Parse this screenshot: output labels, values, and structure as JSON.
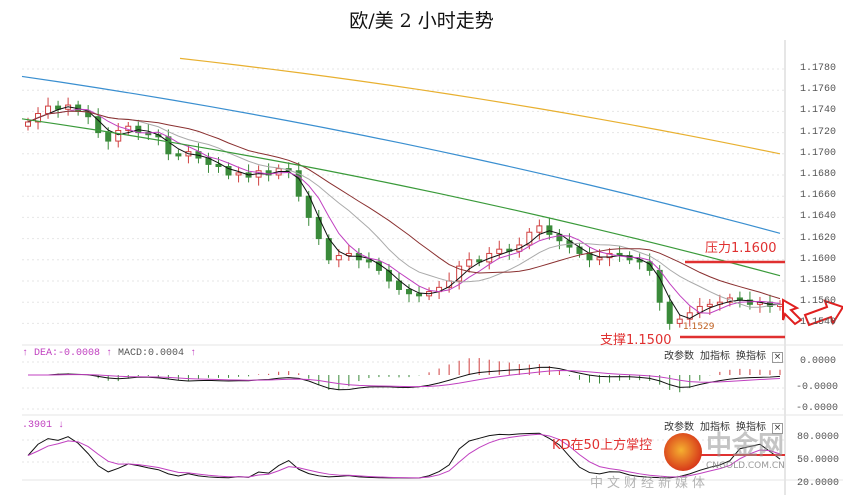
{
  "title": "欧/美 2 小时走势",
  "price_axis": [
    "1.1780",
    "1.1760",
    "1.1740",
    "1.1720",
    "1.1700",
    "1.1680",
    "1.1660",
    "1.1640",
    "1.1620",
    "1.1600",
    "1.1580",
    "1.1560",
    "1.1540"
  ],
  "annotations": {
    "resistance": "压力1.1600",
    "support": "支撑1.1500",
    "low": "1.1529",
    "kd_note": "KD在50上方掌控"
  },
  "macd": {
    "dea": "DEA:-0.0008",
    "macd": "MACD:0.0004",
    "axis": [
      "0.0000",
      "-0.0000",
      "-0.0000"
    ]
  },
  "kd": {
    "value": ".3901",
    "axis": [
      "80.0000",
      "50.0000",
      "20.0000"
    ]
  },
  "panel_buttons": {
    "edit": "改参数",
    "add": "加指标",
    "switch": "换指标",
    "close": "×"
  },
  "watermark": {
    "brand": "中金网",
    "domain": "CNGOLD.COM.CN",
    "slogan": "中文财经新媒体"
  },
  "colors": {
    "up": "#d04040",
    "down": "#3a8a3a",
    "ma_yellow": "#e8b030",
    "ma_blue": "#3a8fd0",
    "ma_green": "#3a9a3a",
    "ma_brown": "#8a3030",
    "ma_pink": "#c040c0",
    "annotation": "#e03030"
  },
  "chart_data": {
    "type": "candlestick",
    "title": "欧/美 2 小时走势",
    "ylim": [
      1.153,
      1.179
    ],
    "closes": [
      1.173,
      1.1738,
      1.1745,
      1.1742,
      1.1746,
      1.174,
      1.1735,
      1.172,
      1.1712,
      1.1722,
      1.1726,
      1.172,
      1.1718,
      1.1716,
      1.17,
      1.1698,
      1.1702,
      1.1696,
      1.169,
      1.1688,
      1.168,
      1.1682,
      1.1678,
      1.1684,
      1.168,
      1.1686,
      1.1684,
      1.166,
      1.164,
      1.162,
      1.16,
      1.1604,
      1.1606,
      1.16,
      1.1598,
      1.159,
      1.158,
      1.1572,
      1.1568,
      1.1566,
      1.157,
      1.1574,
      1.158,
      1.1594,
      1.16,
      1.1598,
      1.1606,
      1.161,
      1.1608,
      1.1614,
      1.1626,
      1.1632,
      1.1624,
      1.1618,
      1.1612,
      1.1606,
      1.16,
      1.1602,
      1.1606,
      1.1604,
      1.16,
      1.1598,
      1.159,
      1.156,
      1.154,
      1.1544,
      1.155,
      1.1556,
      1.1558,
      1.156,
      1.1564,
      1.1562,
      1.1558,
      1.156,
      1.1556,
      1.1558
    ],
    "long_mas": [
      {
        "name": "MA-yellow",
        "from": 1.179,
        "to": 1.17
      },
      {
        "name": "MA-blue",
        "from": 1.1773,
        "to": 1.1625
      },
      {
        "name": "MA-green",
        "from": 1.1733,
        "to": 1.1585
      }
    ],
    "levels": {
      "resistance": 1.16,
      "support": 1.15,
      "low": 1.1529
    }
  }
}
